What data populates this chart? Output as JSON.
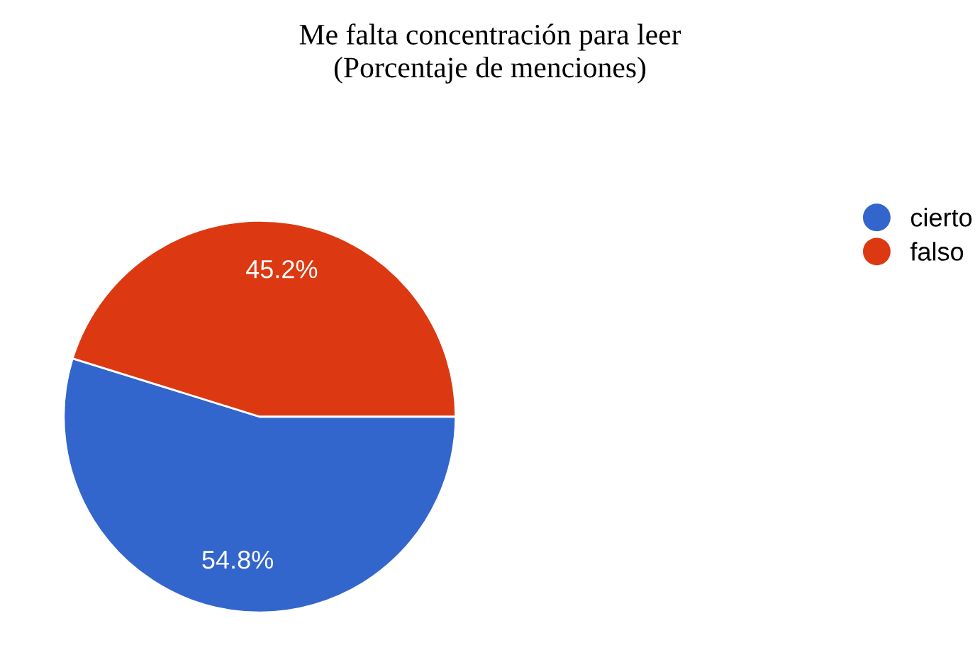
{
  "chart_data": {
    "type": "pie",
    "title": "Me falta concentración para leer\n(Porcentaje de menciones)",
    "categories": [
      "cierto",
      "falso"
    ],
    "values": [
      54.8,
      45.2
    ],
    "colors": [
      "#3366cc",
      "#dc3912"
    ],
    "value_labels": [
      "54.8%",
      "45.2%"
    ],
    "legend": "top right"
  }
}
